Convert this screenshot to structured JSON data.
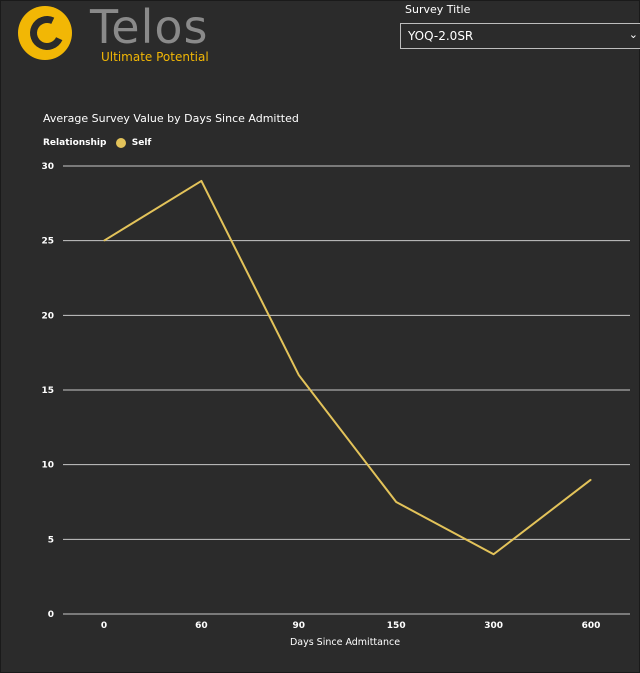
{
  "logo": {
    "name": "Telos",
    "tagline": "Ultimate Potential"
  },
  "slicer": {
    "title": "Survey Title",
    "value": "YOQ-2.0SR",
    "arrow_icon": "chevron-down-icon"
  },
  "chart_data": {
    "type": "line",
    "title": "Average Survey Value by Days Since Admitted",
    "legend_title": "Relationship",
    "legend_placement": "top-left",
    "categories": [
      "0",
      "60",
      "90",
      "150",
      "300",
      "600"
    ],
    "series": [
      {
        "name": "Self",
        "values": [
          25,
          29,
          16,
          7.5,
          4,
          9
        ],
        "color": "#e3c35a"
      }
    ],
    "xlabel": "Days Since Admittance",
    "ylabel": "",
    "ylim": [
      0,
      30
    ],
    "yticks": [
      0,
      5,
      10,
      15,
      20,
      25,
      30
    ],
    "grid": true
  },
  "colors": {
    "background": "#2b2b2b",
    "brand": "#f2b705",
    "gridline": "#c8c8c8"
  }
}
